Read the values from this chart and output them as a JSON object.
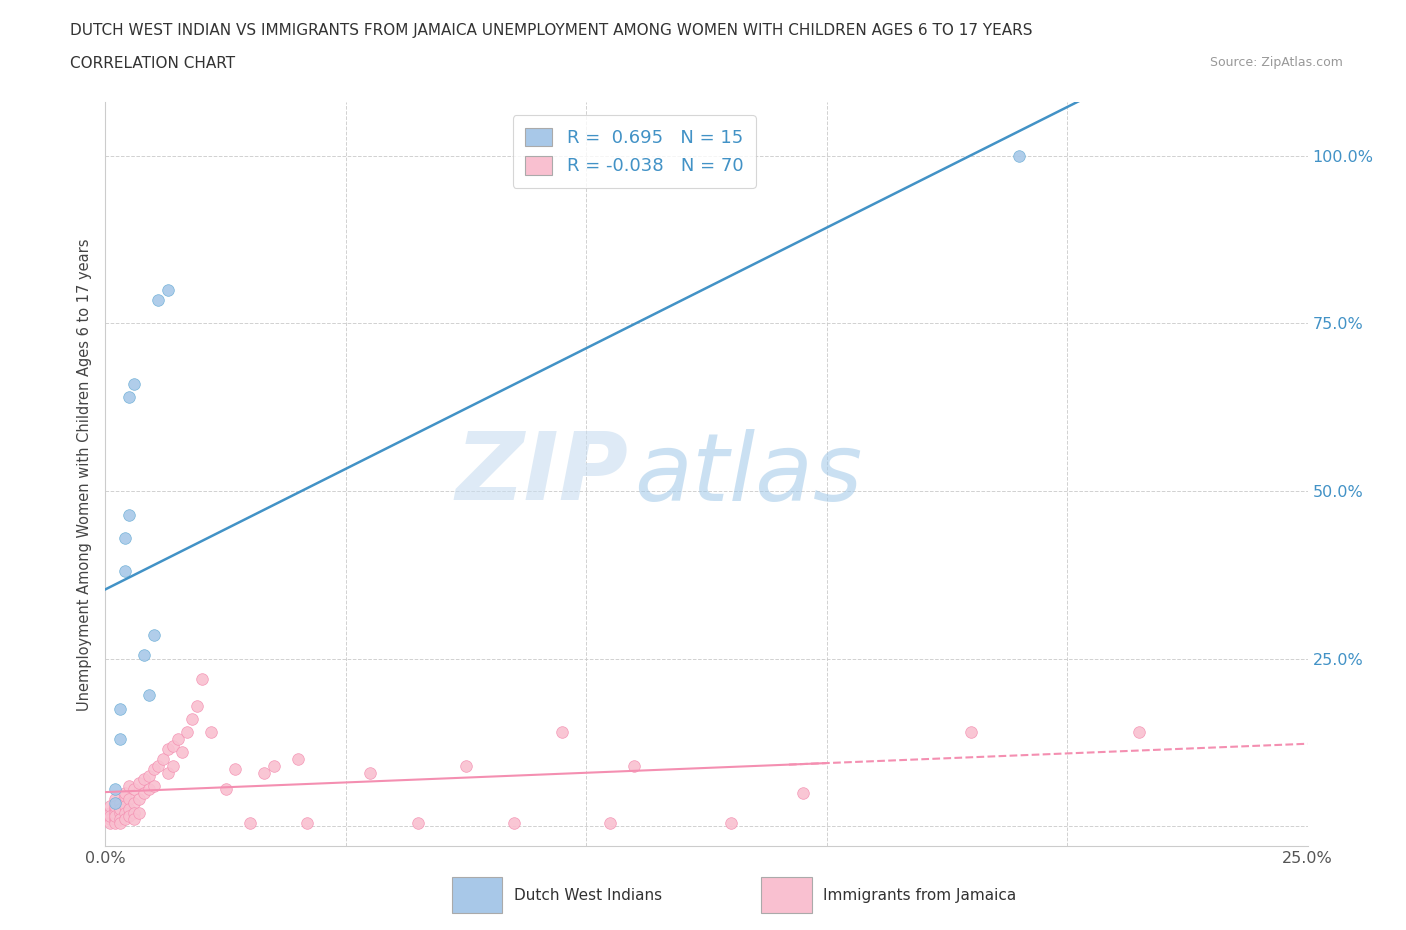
{
  "title_line1": "DUTCH WEST INDIAN VS IMMIGRANTS FROM JAMAICA UNEMPLOYMENT AMONG WOMEN WITH CHILDREN AGES 6 TO 17 YEARS",
  "title_line2": "CORRELATION CHART",
  "source_text": "Source: ZipAtlas.com",
  "ylabel": "Unemployment Among Women with Children Ages 6 to 17 years",
  "watermark_zip": "ZIP",
  "watermark_atlas": "atlas",
  "blue_color": "#a8c8e8",
  "blue_edge_color": "#6baed6",
  "pink_color": "#f9c0d0",
  "pink_edge_color": "#f48fb1",
  "blue_line_color": "#4292c6",
  "pink_line_color": "#f48fb1",
  "dutch_west_indians_x": [
    0.002,
    0.002,
    0.003,
    0.003,
    0.004,
    0.004,
    0.005,
    0.005,
    0.006,
    0.008,
    0.009,
    0.01,
    0.011,
    0.013,
    0.19
  ],
  "dutch_west_indians_y": [
    0.035,
    0.055,
    0.175,
    0.13,
    0.43,
    0.38,
    0.465,
    0.64,
    0.66,
    0.255,
    0.195,
    0.285,
    0.785,
    0.8,
    1.0
  ],
  "jamaica_x": [
    0.001,
    0.001,
    0.001,
    0.001,
    0.001,
    0.002,
    0.002,
    0.002,
    0.002,
    0.002,
    0.002,
    0.002,
    0.003,
    0.003,
    0.003,
    0.003,
    0.003,
    0.004,
    0.004,
    0.004,
    0.004,
    0.004,
    0.005,
    0.005,
    0.005,
    0.005,
    0.006,
    0.006,
    0.006,
    0.006,
    0.007,
    0.007,
    0.007,
    0.008,
    0.008,
    0.009,
    0.009,
    0.01,
    0.01,
    0.011,
    0.012,
    0.013,
    0.013,
    0.014,
    0.014,
    0.015,
    0.016,
    0.017,
    0.018,
    0.019,
    0.02,
    0.022,
    0.025,
    0.027,
    0.03,
    0.033,
    0.035,
    0.04,
    0.042,
    0.055,
    0.065,
    0.075,
    0.085,
    0.095,
    0.105,
    0.11,
    0.13,
    0.145,
    0.18,
    0.215
  ],
  "jamaica_y": [
    0.02,
    0.01,
    0.005,
    0.03,
    0.015,
    0.025,
    0.01,
    0.005,
    0.04,
    0.02,
    0.03,
    0.015,
    0.035,
    0.02,
    0.025,
    0.01,
    0.005,
    0.045,
    0.03,
    0.02,
    0.01,
    0.05,
    0.06,
    0.04,
    0.025,
    0.015,
    0.055,
    0.035,
    0.02,
    0.01,
    0.065,
    0.04,
    0.02,
    0.07,
    0.05,
    0.075,
    0.055,
    0.085,
    0.06,
    0.09,
    0.1,
    0.115,
    0.08,
    0.12,
    0.09,
    0.13,
    0.11,
    0.14,
    0.16,
    0.18,
    0.22,
    0.14,
    0.055,
    0.085,
    0.005,
    0.08,
    0.09,
    0.1,
    0.005,
    0.08,
    0.005,
    0.09,
    0.005,
    0.14,
    0.005,
    0.09,
    0.005,
    0.05,
    0.14,
    0.14
  ],
  "xlim": [
    0.0,
    0.25
  ],
  "ylim": [
    -0.03,
    1.08
  ],
  "xticks": [
    0.0,
    0.05,
    0.1,
    0.15,
    0.2,
    0.25
  ],
  "xtick_labels": [
    "0.0%",
    "",
    "",
    "",
    "",
    "25.0%"
  ],
  "yticks": [
    0.0,
    0.25,
    0.5,
    0.75,
    1.0
  ],
  "right_ytick_labels": [
    "",
    "25.0%",
    "50.0%",
    "75.0%",
    "100.0%"
  ],
  "legend1_text": "R =  0.695   N = 15",
  "legend2_text": "R = -0.038   N = 70",
  "bottom_label1": "Dutch West Indians",
  "bottom_label2": "Immigrants from Jamaica"
}
